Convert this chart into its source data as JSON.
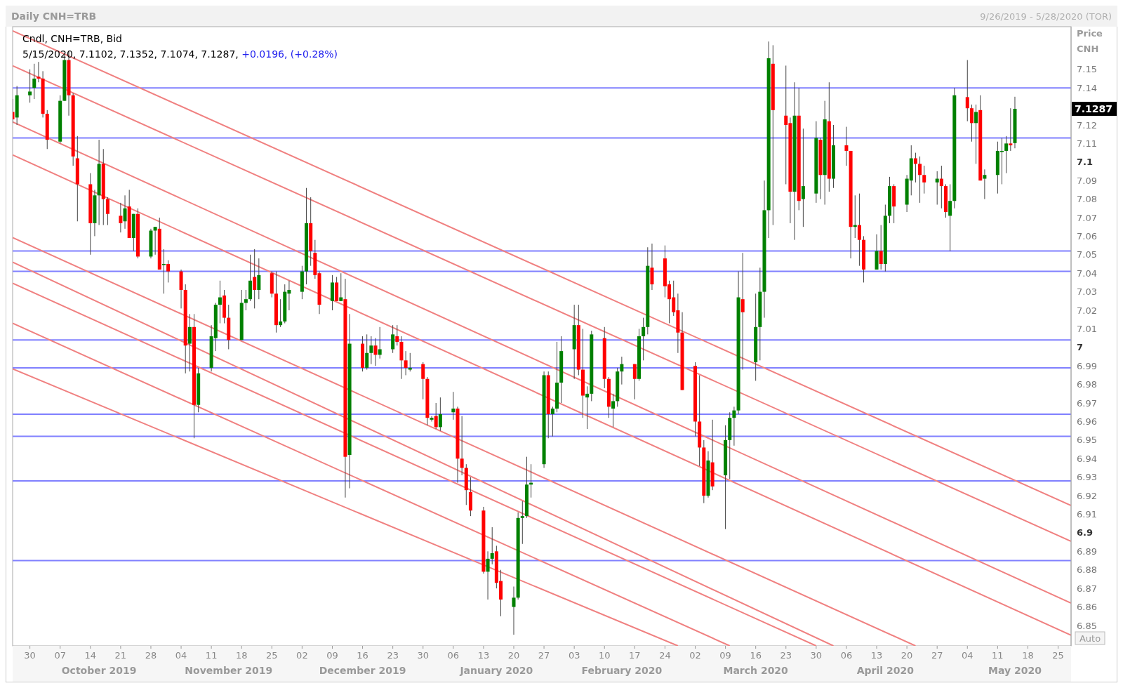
{
  "chart_data": {
    "type": "candlestick",
    "title": "Daily CNH=TRB",
    "ylabel": "Price CNH",
    "x": [
      "2019-09-26",
      "2019-09-27",
      "2019-09-30",
      "2019-10-01",
      "2019-10-02",
      "2019-10-03",
      "2019-10-04",
      "2019-10-07",
      "2019-10-08",
      "2019-10-09",
      "2019-10-10",
      "2019-10-11",
      "2019-10-14",
      "2019-10-15",
      "2019-10-16",
      "2019-10-17",
      "2019-10-18",
      "2019-10-21",
      "2019-10-22",
      "2019-10-23",
      "2019-10-24",
      "2019-10-25",
      "2019-10-28",
      "2019-10-29",
      "2019-10-30",
      "2019-10-31",
      "2019-11-01",
      "2019-11-04",
      "2019-11-05",
      "2019-11-06",
      "2019-11-07",
      "2019-11-08",
      "2019-11-11",
      "2019-11-12",
      "2019-11-13",
      "2019-11-14",
      "2019-11-15",
      "2019-11-18",
      "2019-11-19",
      "2019-11-20",
      "2019-11-21",
      "2019-11-22",
      "2019-11-25",
      "2019-11-26",
      "2019-11-27",
      "2019-11-28",
      "2019-11-29",
      "2019-12-02",
      "2019-12-03",
      "2019-12-04",
      "2019-12-05",
      "2019-12-06",
      "2019-12-09",
      "2019-12-10",
      "2019-12-11",
      "2019-12-12",
      "2019-12-13",
      "2019-12-16",
      "2019-12-17",
      "2019-12-18",
      "2019-12-19",
      "2019-12-20",
      "2019-12-23",
      "2019-12-24",
      "2019-12-25",
      "2019-12-26",
      "2019-12-27",
      "2019-12-30",
      "2019-12-31",
      "2020-01-01",
      "2020-01-02",
      "2020-01-03",
      "2020-01-06",
      "2020-01-07",
      "2020-01-08",
      "2020-01-09",
      "2020-01-10",
      "2020-01-13",
      "2020-01-14",
      "2020-01-15",
      "2020-01-16",
      "2020-01-17",
      "2020-01-20",
      "2020-01-21",
      "2020-01-22",
      "2020-01-23",
      "2020-01-24",
      "2020-01-27",
      "2020-01-28",
      "2020-01-29",
      "2020-01-30",
      "2020-01-31",
      "2020-02-03",
      "2020-02-04",
      "2020-02-05",
      "2020-02-06",
      "2020-02-07",
      "2020-02-10",
      "2020-02-11",
      "2020-02-12",
      "2020-02-13",
      "2020-02-14",
      "2020-02-17",
      "2020-02-18",
      "2020-02-19",
      "2020-02-20",
      "2020-02-21",
      "2020-02-24",
      "2020-02-25",
      "2020-02-26",
      "2020-02-27",
      "2020-02-28",
      "2020-03-02",
      "2020-03-03",
      "2020-03-04",
      "2020-03-05",
      "2020-03-06",
      "2020-03-09",
      "2020-03-10",
      "2020-03-11",
      "2020-03-12",
      "2020-03-13",
      "2020-03-16",
      "2020-03-17",
      "2020-03-18",
      "2020-03-19",
      "2020-03-20",
      "2020-03-23",
      "2020-03-24",
      "2020-03-25",
      "2020-03-26",
      "2020-03-27",
      "2020-03-30",
      "2020-03-31",
      "2020-04-01",
      "2020-04-02",
      "2020-04-03",
      "2020-04-06",
      "2020-04-07",
      "2020-04-08",
      "2020-04-09",
      "2020-04-10",
      "2020-04-13",
      "2020-04-14",
      "2020-04-15",
      "2020-04-16",
      "2020-04-17",
      "2020-04-20",
      "2020-04-21",
      "2020-04-22",
      "2020-04-23",
      "2020-04-24",
      "2020-04-27",
      "2020-04-28",
      "2020-04-29",
      "2020-04-30",
      "2020-05-01",
      "2020-05-04",
      "2020-05-05",
      "2020-05-06",
      "2020-05-07",
      "2020-05-08",
      "2020-05-11",
      "2020-05-12",
      "2020-05-13",
      "2020-05-14",
      "2020-05-15"
    ],
    "ohlc": [
      [
        7.127,
        7.134,
        7.121,
        7.123
      ],
      [
        7.124,
        7.141,
        7.12,
        7.136
      ],
      [
        7.136,
        7.15,
        7.132,
        7.138
      ],
      [
        7.14,
        7.153,
        7.134,
        7.145
      ],
      [
        7.146,
        7.154,
        7.143,
        7.145
      ],
      [
        7.145,
        7.149,
        7.124,
        7.126
      ],
      [
        7.126,
        7.128,
        7.107,
        7.112
      ],
      [
        7.111,
        7.136,
        7.11,
        7.133
      ],
      [
        7.133,
        7.158,
        7.133,
        7.155
      ],
      [
        7.155,
        7.16,
        7.125,
        7.136
      ],
      [
        7.136,
        7.137,
        7.098,
        7.103
      ],
      [
        7.102,
        7.114,
        7.068,
        7.088
      ],
      [
        7.088,
        7.094,
        7.05,
        7.067
      ],
      [
        7.067,
        7.085,
        7.06,
        7.082
      ],
      [
        7.082,
        7.112,
        7.066,
        7.099
      ],
      [
        7.099,
        7.107,
        7.066,
        7.08
      ],
      [
        7.08,
        7.081,
        7.066,
        7.072
      ],
      [
        7.071,
        7.078,
        7.062,
        7.067
      ],
      [
        7.068,
        7.082,
        7.064,
        7.075
      ],
      [
        7.076,
        7.085,
        7.059,
        7.059
      ],
      [
        7.059,
        7.072,
        7.052,
        7.072
      ],
      [
        7.072,
        7.075,
        7.048,
        7.049
      ],
      [
        7.049,
        7.064,
        7.048,
        7.063
      ],
      [
        7.063,
        7.065,
        7.05,
        7.065
      ],
      [
        7.064,
        7.07,
        7.042,
        7.042
      ],
      [
        7.045,
        7.053,
        7.029,
        7.045
      ],
      [
        7.045,
        7.047,
        7.035,
        7.041
      ],
      [
        7.041,
        7.042,
        7.021,
        7.031
      ],
      [
        7.031,
        7.034,
        6.986,
        7.001
      ],
      [
        7.002,
        7.018,
        6.987,
        7.011
      ],
      [
        7.011,
        7.018,
        6.951,
        6.969
      ],
      [
        6.969,
        6.989,
        6.965,
        6.986
      ],
      [
        6.989,
        7.012,
        6.987,
        7.006
      ],
      [
        7.005,
        7.024,
        6.998,
        7.023
      ],
      [
        7.023,
        7.036,
        7.013,
        7.027
      ],
      [
        7.028,
        7.031,
        7.013,
        7.016
      ],
      [
        7.016,
        7.023,
        6.999,
        7.004
      ],
      [
        7.004,
        7.031,
        7.004,
        7.024
      ],
      [
        7.024,
        7.031,
        7.02,
        7.026
      ],
      [
        7.026,
        7.05,
        7.025,
        7.036
      ],
      [
        7.038,
        7.053,
        7.021,
        7.031
      ],
      [
        7.031,
        7.048,
        7.026,
        7.039
      ],
      [
        7.04,
        7.041,
        7.027,
        7.029
      ],
      [
        7.029,
        7.041,
        7.008,
        7.012
      ],
      [
        7.012,
        7.026,
        7.011,
        7.014
      ],
      [
        7.014,
        7.034,
        7.013,
        7.03
      ],
      [
        7.029,
        7.036,
        7.02,
        7.031
      ],
      [
        7.03,
        7.044,
        7.026,
        7.041
      ],
      [
        7.041,
        7.086,
        7.034,
        7.067
      ],
      [
        7.067,
        7.081,
        7.044,
        7.052
      ],
      [
        7.051,
        7.058,
        7.037,
        7.039
      ],
      [
        7.04,
        7.041,
        7.018,
        7.023
      ],
      [
        7.025,
        7.039,
        7.02,
        7.035
      ],
      [
        7.035,
        7.038,
        7.025,
        7.025
      ],
      [
        7.025,
        7.04,
        7.025,
        7.027
      ],
      [
        7.026,
        7.037,
        6.919,
        6.941
      ],
      [
        6.942,
        7.018,
        6.924,
        7.002
      ],
      [
        7.002,
        7.006,
        6.987,
        6.989
      ],
      [
        6.989,
        7.007,
        6.988,
        6.997
      ],
      [
        6.997,
        7.006,
        6.991,
        7.001
      ],
      [
        7.001,
        7.005,
        6.99,
        6.996
      ],
      [
        6.996,
        7.011,
        6.994,
        6.999
      ],
      [
        6.999,
        7.012,
        6.997,
        7.007
      ],
      [
        7.006,
        7.012,
        7.001,
        7.003
      ],
      [
        7.003,
        7.006,
        6.983,
        6.993
      ],
      [
        6.993,
        6.998,
        6.985,
        6.989
      ],
      [
        6.988,
        6.997,
        6.987,
        6.989
      ],
      [
        6.991,
        6.992,
        6.972,
        6.983
      ],
      [
        6.983,
        6.984,
        6.958,
        6.962
      ],
      [
        6.961,
        6.963,
        6.96,
        6.962
      ],
      [
        6.963,
        6.97,
        6.956,
        6.957
      ],
      [
        6.957,
        6.973,
        6.955,
        6.964
      ],
      [
        6.965,
        6.976,
        6.961,
        6.967
      ],
      [
        6.967,
        6.968,
        6.927,
        6.94
      ],
      [
        6.94,
        6.963,
        6.931,
        6.935
      ],
      [
        6.935,
        6.937,
        6.915,
        6.923
      ],
      [
        6.922,
        6.93,
        6.909,
        6.912
      ],
      [
        6.912,
        6.914,
        6.878,
        6.879
      ],
      [
        6.879,
        6.89,
        6.864,
        6.886
      ],
      [
        6.886,
        6.903,
        6.883,
        6.889
      ],
      [
        6.89,
        6.893,
        6.87,
        6.873
      ],
      [
        6.874,
        6.88,
        6.855,
        6.864
      ],
      [
        6.86,
        6.871,
        6.845,
        6.865
      ],
      [
        6.865,
        6.911,
        6.864,
        6.908
      ],
      [
        6.908,
        6.917,
        6.894,
        6.909
      ],
      [
        6.909,
        6.941,
        6.908,
        6.926
      ],
      [
        6.926,
        6.937,
        6.919,
        6.927
      ],
      [
        6.937,
        6.987,
        6.935,
        6.985
      ],
      [
        6.985,
        6.987,
        6.951,
        6.964
      ],
      [
        6.964,
        6.968,
        6.952,
        6.967
      ],
      [
        6.967,
        7.003,
        6.965,
        6.981
      ],
      [
        6.981,
        7.006,
        6.97,
        6.998
      ],
      [
        6.999,
        7.023,
        6.983,
        7.012
      ],
      [
        7.012,
        7.023,
        6.985,
        6.988
      ],
      [
        6.988,
        7.01,
        6.962,
        6.974
      ],
      [
        6.973,
        6.979,
        6.956,
        6.975
      ],
      [
        6.975,
        7.009,
        6.971,
        7.007
      ],
      [
        7.005,
        7.011,
        6.978,
        6.983
      ],
      [
        6.983,
        6.984,
        6.962,
        6.968
      ],
      [
        6.967,
        6.975,
        6.957,
        6.971
      ],
      [
        6.971,
        6.989,
        6.968,
        6.987
      ],
      [
        6.987,
        6.995,
        6.98,
        6.991
      ],
      [
        6.991,
        6.991,
        6.972,
        6.983
      ],
      [
        6.983,
        7.01,
        6.982,
        7.006
      ],
      [
        7.006,
        7.016,
        6.993,
        7.011
      ],
      [
        7.011,
        7.054,
        7.007,
        7.044
      ],
      [
        7.043,
        7.056,
        7.031,
        7.034
      ],
      [
        7.048,
        7.055,
        7.027,
        7.033
      ],
      [
        7.034,
        7.036,
        7.013,
        7.026
      ],
      [
        7.027,
        7.036,
        7.017,
        7.019
      ],
      [
        7.02,
        7.029,
        6.997,
        7.008
      ],
      [
        7.008,
        7.019,
        6.977,
        6.977
      ],
      [
        6.99,
        6.992,
        6.952,
        6.96
      ],
      [
        6.96,
        6.985,
        6.936,
        6.946
      ],
      [
        6.946,
        6.95,
        6.916,
        6.92
      ],
      [
        6.92,
        6.944,
        6.919,
        6.939
      ],
      [
        6.938,
        6.961,
        6.923,
        6.925
      ],
      [
        6.931,
        6.958,
        6.902,
        6.95
      ],
      [
        6.95,
        6.965,
        6.929,
        6.962
      ],
      [
        6.962,
        6.968,
        6.947,
        6.966
      ],
      [
        6.966,
        7.041,
        6.964,
        7.027
      ],
      [
        7.026,
        7.051,
        6.988,
        7.019
      ],
      [
        6.992,
        7.029,
        6.982,
        7.011
      ],
      [
        7.011,
        7.043,
        6.993,
        7.03
      ],
      [
        7.03,
        7.09,
        7.016,
        7.074
      ],
      [
        7.074,
        7.165,
        7.059,
        7.156
      ],
      [
        7.153,
        7.163,
        7.066,
        7.128
      ],
      [
        7.125,
        7.152,
        7.088,
        7.12
      ],
      [
        7.121,
        7.124,
        7.067,
        7.084
      ],
      [
        7.084,
        7.143,
        7.058,
        7.125
      ],
      [
        7.125,
        7.14,
        7.074,
        7.079
      ],
      [
        7.08,
        7.118,
        7.065,
        7.087
      ],
      [
        7.083,
        7.122,
        7.078,
        7.113
      ],
      [
        7.112,
        7.113,
        7.08,
        7.093
      ],
      [
        7.093,
        7.133,
        7.077,
        7.123
      ],
      [
        7.122,
        7.143,
        7.084,
        7.091
      ],
      [
        7.091,
        7.12,
        7.086,
        7.109
      ],
      [
        7.109,
        7.119,
        7.098,
        7.106
      ],
      [
        7.106,
        7.106,
        7.048,
        7.065
      ],
      [
        7.065,
        7.082,
        7.059,
        7.066
      ],
      [
        7.066,
        7.083,
        7.044,
        7.058
      ],
      [
        7.058,
        7.06,
        7.035,
        7.042
      ],
      [
        7.042,
        7.061,
        7.042,
        7.052
      ],
      [
        7.052,
        7.066,
        7.042,
        7.045
      ],
      [
        7.045,
        7.077,
        7.041,
        7.071
      ],
      [
        7.071,
        7.092,
        7.067,
        7.087
      ],
      [
        7.087,
        7.088,
        7.067,
        7.076
      ],
      [
        7.077,
        7.093,
        7.073,
        7.091
      ],
      [
        7.09,
        7.109,
        7.082,
        7.102
      ],
      [
        7.102,
        7.105,
        7.089,
        7.099
      ],
      [
        7.099,
        7.103,
        7.078,
        7.093
      ],
      [
        7.093,
        7.098,
        7.083,
        7.089
      ],
      [
        7.089,
        7.095,
        7.077,
        7.091
      ],
      [
        7.091,
        7.098,
        7.075,
        7.087
      ],
      [
        7.087,
        7.088,
        7.07,
        7.073
      ],
      [
        7.071,
        7.088,
        7.052,
        7.079
      ],
      [
        7.079,
        7.14,
        7.075,
        7.136
      ],
      [
        7.135,
        7.155,
        7.122,
        7.129
      ],
      [
        7.129,
        7.131,
        7.111,
        7.121
      ],
      [
        7.121,
        7.131,
        7.099,
        7.127
      ],
      [
        7.128,
        7.136,
        7.09,
        7.09
      ],
      [
        7.091,
        7.096,
        7.08,
        7.093
      ],
      [
        7.093,
        7.111,
        7.083,
        7.106
      ],
      [
        7.106,
        7.113,
        7.088,
        7.106
      ],
      [
        7.106,
        7.114,
        7.094,
        7.11
      ],
      [
        7.11,
        7.129,
        7.106,
        7.109
      ],
      [
        7.1102,
        7.1352,
        7.1074,
        7.1287
      ]
    ],
    "colors": [
      "#ff0000",
      "#008000",
      "#008000",
      "#008000",
      "#ff0000",
      "#ff0000",
      "#ff0000",
      "#008000",
      "#008000",
      "#ff0000",
      "#ff0000",
      "#ff0000",
      "#ff0000",
      "#008000",
      "#008000",
      "#ff0000",
      "#ff0000",
      "#ff0000",
      "#008000",
      "#ff0000",
      "#008000",
      "#ff0000",
      "#008000",
      "#008000",
      "#ff0000",
      "#008000",
      "#ff0000",
      "#ff0000",
      "#ff0000",
      "#008000",
      "#ff0000",
      "#008000",
      "#008000",
      "#008000",
      "#008000",
      "#ff0000",
      "#ff0000",
      "#008000",
      "#008000",
      "#008000",
      "#ff0000",
      "#008000",
      "#ff0000",
      "#ff0000",
      "#008000",
      "#008000",
      "#008000",
      "#008000",
      "#008000",
      "#ff0000",
      "#ff0000",
      "#ff0000",
      "#008000",
      "#ff0000",
      "#008000",
      "#ff0000",
      "#008000",
      "#ff0000",
      "#008000",
      "#008000",
      "#ff0000",
      "#008000",
      "#008000",
      "#ff0000",
      "#ff0000",
      "#ff0000",
      "#008000",
      "#ff0000",
      "#ff0000",
      "#008000",
      "#ff0000",
      "#008000",
      "#008000",
      "#ff0000",
      "#ff0000",
      "#ff0000",
      "#ff0000",
      "#ff0000",
      "#008000",
      "#008000",
      "#ff0000",
      "#ff0000",
      "#008000",
      "#008000",
      "#008000",
      "#008000",
      "#008000",
      "#008000",
      "#ff0000",
      "#008000",
      "#008000",
      "#008000",
      "#008000",
      "#ff0000",
      "#ff0000",
      "#008000",
      "#008000",
      "#ff0000",
      "#ff0000",
      "#008000",
      "#008000",
      "#008000",
      "#ff0000",
      "#008000",
      "#008000",
      "#008000",
      "#ff0000",
      "#ff0000",
      "#ff0000",
      "#ff0000",
      "#ff0000",
      "#ff0000",
      "#ff0000",
      "#ff0000",
      "#ff0000",
      "#008000",
      "#ff0000",
      "#008000",
      "#008000",
      "#008000",
      "#008000",
      "#ff0000",
      "#008000",
      "#008000",
      "#008000",
      "#008000",
      "#ff0000",
      "#ff0000",
      "#ff0000",
      "#008000",
      "#ff0000",
      "#008000",
      "#008000",
      "#ff0000",
      "#008000",
      "#ff0000",
      "#008000",
      "#ff0000",
      "#ff0000",
      "#008000",
      "#ff0000",
      "#ff0000",
      "#008000",
      "#ff0000",
      "#008000",
      "#008000",
      "#ff0000",
      "#008000",
      "#008000",
      "#ff0000",
      "#ff0000",
      "#ff0000",
      "#008000",
      "#ff0000",
      "#ff0000",
      "#008000",
      "#008000",
      "#ff0000",
      "#ff0000",
      "#008000",
      "#ff0000",
      "#008000",
      "#008000",
      "#008000",
      "#008000",
      "#ff0000",
      "#008000"
    ],
    "xlim": [
      "2019-09-26",
      "2020-05-28"
    ],
    "xticks": [
      {
        "value": "2019-09-30",
        "label": "30"
      },
      {
        "value": "2019-10-07",
        "label": "07"
      },
      {
        "value": "2019-10-14",
        "label": "14"
      },
      {
        "value": "2019-10-21",
        "label": "21"
      },
      {
        "value": "2019-10-28",
        "label": "28"
      },
      {
        "value": "2019-11-04",
        "label": "04"
      },
      {
        "value": "2019-11-11",
        "label": "11"
      },
      {
        "value": "2019-11-18",
        "label": "18"
      },
      {
        "value": "2019-11-25",
        "label": "25"
      },
      {
        "value": "2019-12-02",
        "label": "02"
      },
      {
        "value": "2019-12-09",
        "label": "09"
      },
      {
        "value": "2019-12-16",
        "label": "16"
      },
      {
        "value": "2019-12-23",
        "label": "23"
      },
      {
        "value": "2019-12-30",
        "label": "30"
      },
      {
        "value": "2020-01-06",
        "label": "06"
      },
      {
        "value": "2020-01-13",
        "label": "13"
      },
      {
        "value": "2020-01-20",
        "label": "20"
      },
      {
        "value": "2020-01-27",
        "label": "27"
      },
      {
        "value": "2020-02-03",
        "label": "03"
      },
      {
        "value": "2020-02-10",
        "label": "10"
      },
      {
        "value": "2020-02-17",
        "label": "17"
      },
      {
        "value": "2020-02-24",
        "label": "24"
      },
      {
        "value": "2020-03-02",
        "label": "02"
      },
      {
        "value": "2020-03-09",
        "label": "09"
      },
      {
        "value": "2020-03-16",
        "label": "16"
      },
      {
        "value": "2020-03-23",
        "label": "23"
      },
      {
        "value": "2020-03-30",
        "label": "30"
      },
      {
        "value": "2020-04-06",
        "label": "06"
      },
      {
        "value": "2020-04-13",
        "label": "13"
      },
      {
        "value": "2020-04-20",
        "label": "20"
      },
      {
        "value": "2020-04-27",
        "label": "27"
      },
      {
        "value": "2020-05-04",
        "label": "04"
      },
      {
        "value": "2020-05-11",
        "label": "11"
      },
      {
        "value": "2020-05-18",
        "label": "18"
      },
      {
        "value": "2020-05-25",
        "label": "25"
      }
    ],
    "x2lim": [
      "2019-09-26",
      "2020-05-28"
    ],
    "x2ticks": [
      {
        "value": "2019-10-16",
        "label": "October 2019"
      },
      {
        "value": "2019-11-15",
        "label": "November 2019"
      },
      {
        "value": "2019-12-16",
        "label": "December 2019"
      },
      {
        "value": "2020-01-16",
        "label": "January 2020"
      },
      {
        "value": "2020-02-14",
        "label": "February 2020"
      },
      {
        "value": "2020-03-16",
        "label": "March 2020"
      },
      {
        "value": "2020-04-15",
        "label": "April 2020"
      },
      {
        "value": "2020-05-15",
        "label": "May 2020"
      }
    ],
    "ylim": [
      6.839,
      7.173
    ],
    "yticks": [
      6.85,
      6.86,
      6.87,
      6.88,
      6.89,
      6.9,
      6.91,
      6.92,
      6.93,
      6.94,
      6.95,
      6.96,
      6.97,
      6.98,
      6.99,
      7,
      7.01,
      7.02,
      7.03,
      7.04,
      7.05,
      7.06,
      7.07,
      7.08,
      7.09,
      7.1,
      7.11,
      7.12,
      7.14,
      7.15
    ],
    "series": [
      {
        "type": "line",
        "color": "#f08080",
        "x": [
          "2019-09-26",
          "2020-05-28"
        ],
        "values": [
          7.1708,
          6.9147
        ]
      },
      {
        "type": "line",
        "color": "#f08080",
        "x": [
          "2019-09-26",
          "2020-05-28"
        ],
        "values": [
          7.1519,
          6.8954
        ]
      },
      {
        "type": "line",
        "color": "#f08080",
        "x": [
          "2019-09-26",
          "2020-05-28"
        ],
        "values": [
          7.1216,
          6.8621
        ]
      },
      {
        "type": "line",
        "color": "#f08080",
        "x": [
          "2019-09-26",
          "2020-05-28"
        ],
        "values": [
          7.1038,
          6.8447
        ]
      },
      {
        "type": "line",
        "color": "#f08080",
        "x": [
          "2019-09-26",
          "2020-04-22"
        ],
        "values": [
          7.0592,
          6.839
        ]
      },
      {
        "type": "line",
        "color": "#f08080",
        "x": [
          "2019-09-26",
          "2020-04-03"
        ],
        "values": [
          7.046,
          6.839
        ]
      },
      {
        "type": "line",
        "color": "#f08080",
        "x": [
          "2019-09-26",
          "2020-03-30"
        ],
        "values": [
          7.0346,
          6.839
        ]
      },
      {
        "type": "line",
        "color": "#f08080",
        "x": [
          "2019-09-26",
          "2020-03-10"
        ],
        "values": [
          7.013,
          6.839
        ]
      },
      {
        "type": "line",
        "color": "#f08080",
        "x": [
          "2019-09-26",
          "2020-02-27"
        ],
        "values": [
          6.9884,
          6.839
        ]
      }
    ],
    "ref_lines": [
      {
        "axis": "y",
        "value": 7.14,
        "color": "#8080ff"
      },
      {
        "axis": "y",
        "value": 7.113,
        "color": "#8080ff"
      },
      {
        "axis": "y",
        "value": 7.052,
        "color": "#8080ff"
      },
      {
        "axis": "y",
        "value": 7.041,
        "color": "#8080ff"
      },
      {
        "axis": "y",
        "value": 7.004,
        "color": "#8080ff"
      },
      {
        "axis": "y",
        "value": 6.989,
        "color": "#8080ff"
      },
      {
        "axis": "y",
        "value": 6.964,
        "color": "#8080ff"
      },
      {
        "axis": "y",
        "value": 6.952,
        "color": "#8080ff"
      },
      {
        "axis": "y",
        "value": 6.928,
        "color": "#8080ff"
      },
      {
        "axis": "y",
        "value": 6.885,
        "color": "#8080ff"
      }
    ],
    "annotations": [
      "9/26/2019 - 5/28/2020 (TOR)",
      "Cndl, CNH=TRB, Bid",
      "5/15/2020, 7.1102, 7.1352, 7.1074, 7.1287,",
      "+0.0196, (+0.28%)",
      "Auto",
      "7.1287"
    ]
  }
}
